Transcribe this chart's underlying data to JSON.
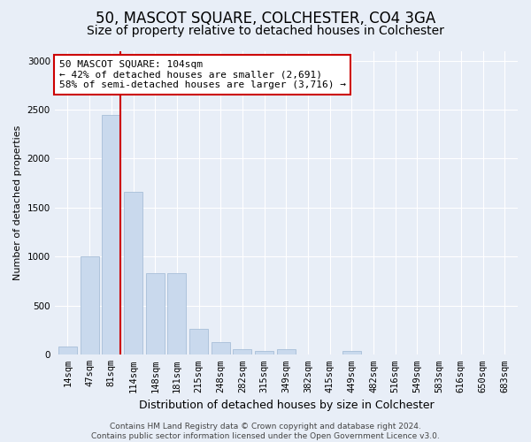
{
  "title": "50, MASCOT SQUARE, COLCHESTER, CO4 3GA",
  "subtitle": "Size of property relative to detached houses in Colchester",
  "xlabel": "Distribution of detached houses by size in Colchester",
  "ylabel": "Number of detached properties",
  "categories": [
    "14sqm",
    "47sqm",
    "81sqm",
    "114sqm",
    "148sqm",
    "181sqm",
    "215sqm",
    "248sqm",
    "282sqm",
    "315sqm",
    "349sqm",
    "382sqm",
    "415sqm",
    "449sqm",
    "482sqm",
    "516sqm",
    "549sqm",
    "583sqm",
    "616sqm",
    "650sqm",
    "683sqm"
  ],
  "values": [
    80,
    1000,
    2450,
    1660,
    830,
    830,
    260,
    130,
    55,
    40,
    55,
    5,
    5,
    40,
    5,
    5,
    5,
    5,
    5,
    5,
    5
  ],
  "bar_color": "#c9d9ed",
  "bar_edge_color": "#a8bfd8",
  "vline_color": "#cc0000",
  "annotation_text": "50 MASCOT SQUARE: 104sqm\n← 42% of detached houses are smaller (2,691)\n58% of semi-detached houses are larger (3,716) →",
  "annotation_box_color": "white",
  "annotation_border_color": "#cc0000",
  "ylim": [
    0,
    3100
  ],
  "yticks": [
    0,
    500,
    1000,
    1500,
    2000,
    2500,
    3000
  ],
  "background_color": "#e8eef7",
  "plot_bg_color": "#e8eef7",
  "footer": "Contains HM Land Registry data © Crown copyright and database right 2024.\nContains public sector information licensed under the Open Government Licence v3.0.",
  "title_fontsize": 12,
  "subtitle_fontsize": 10,
  "xlabel_fontsize": 9,
  "ylabel_fontsize": 8,
  "tick_fontsize": 7.5,
  "annotation_fontsize": 8,
  "footer_fontsize": 6.5,
  "vline_pos": 2.42
}
